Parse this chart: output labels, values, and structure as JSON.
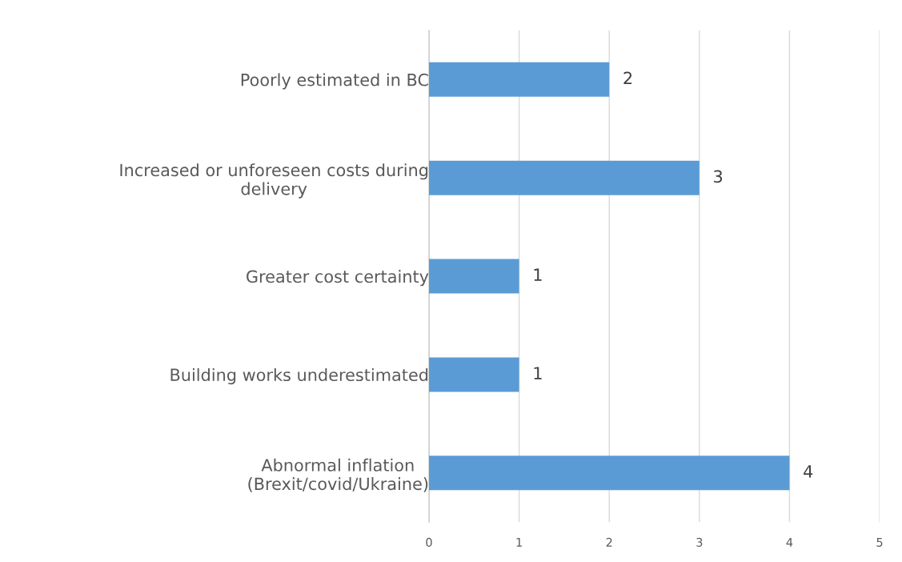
{
  "chart_data": {
    "type": "bar",
    "orientation": "horizontal",
    "categories": [
      "Poorly estimated in BC",
      "Increased or unforeseen costs during\ndelivery",
      "Greater cost certainty",
      "Building works underestimated",
      "Abnormal inflation\n(Brexit/covid/Ukraine)"
    ],
    "values": [
      2,
      3,
      1,
      1,
      4
    ],
    "color": "#5b9bd5",
    "xlim": [
      0,
      5
    ],
    "xticks": [
      0,
      1,
      2,
      3,
      4,
      5
    ],
    "grid": "x",
    "data_labels": true
  }
}
